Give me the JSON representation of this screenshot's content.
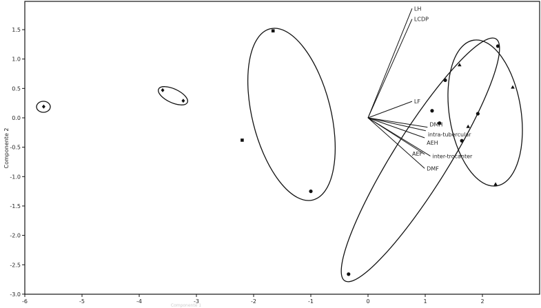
{
  "chart_data": {
    "type": "scatter",
    "title": "",
    "xlabel": "Componente 1",
    "ylabel": "Componente 2",
    "xlim": [
      -6,
      3
    ],
    "ylim": [
      -3.0,
      1.97
    ],
    "xticks": [
      "-6",
      "-5",
      "-4",
      "-3",
      "-2",
      "-1",
      "0",
      "1",
      "2"
    ],
    "yticks": [
      "1.5",
      "1.0",
      "0.5",
      "0.0",
      "-0.5",
      "-1.0",
      "-1.5",
      "-2.0",
      "-2.5",
      "-3.0"
    ],
    "grid": false,
    "series": [
      {
        "marker": "diamond",
        "points": [
          [
            -5.67,
            0.19
          ],
          [
            -3.59,
            0.47
          ],
          [
            -3.23,
            0.29
          ]
        ]
      },
      {
        "marker": "square",
        "points": [
          [
            -1.66,
            1.48
          ],
          [
            -2.2,
            -0.38
          ]
        ]
      },
      {
        "marker": "circle",
        "points": [
          [
            -1.0,
            -1.25
          ],
          [
            -0.34,
            -2.66
          ],
          [
            2.27,
            1.22
          ],
          [
            1.35,
            0.64
          ],
          [
            1.12,
            0.12
          ],
          [
            1.25,
            -0.09
          ],
          [
            1.92,
            0.07
          ],
          [
            1.64,
            -0.39
          ]
        ]
      },
      {
        "marker": "triangle",
        "points": [
          [
            1.6,
            0.9
          ],
          [
            2.53,
            0.52
          ],
          [
            1.75,
            -0.15
          ],
          [
            2.23,
            -1.13
          ]
        ]
      }
    ],
    "loadings": [
      {
        "name": "LH",
        "x": 0.77,
        "y": 1.86
      },
      {
        "name": "LCDP",
        "x": 0.77,
        "y": 1.68
      },
      {
        "name": "LF",
        "x": 0.77,
        "y": 0.28
      },
      {
        "name": "DMH",
        "x": 1.04,
        "y": -0.16
      },
      {
        "name": "intra-tubercular",
        "x": 1.01,
        "y": -0.22
      },
      {
        "name": "AEH",
        "x": 0.99,
        "y": -0.34
      },
      {
        "name": "AEF",
        "x": 0.99,
        "y": -0.62
      },
      {
        "name": "inter-trocanter",
        "x": 1.09,
        "y": -0.65
      },
      {
        "name": "DMF",
        "x": 0.99,
        "y": -0.86
      }
    ]
  }
}
